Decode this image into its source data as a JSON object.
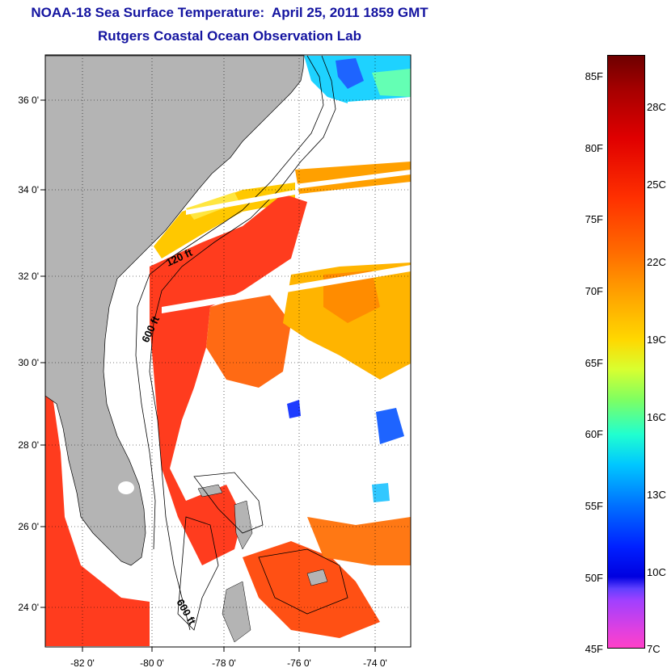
{
  "title": {
    "line1": "NOAA-18 Sea Surface Temperature:  April 25, 2011 1859 GMT",
    "line2": "Rutgers Coastal Ocean Observation Lab"
  },
  "map": {
    "latitude_labels": [
      "36 0'",
      "34 0'",
      "32 0'",
      "30 0'",
      "28 0'",
      "26 0'",
      "24 0'"
    ],
    "longitude_labels": [
      "-82 0'",
      "-80 0'",
      "-78 0'",
      "-76 0'",
      "-74 0'"
    ],
    "contour_labels": {
      "c120_top": "120 ft",
      "c600_mid": "600 ft",
      "c600_bottom": "600 ft"
    },
    "colors": {
      "land": "#b4b4b4",
      "ocean_no_data": "#ffffff",
      "warm_sst": "#ff3c1e",
      "mid_sst": "#ffb400",
      "cool_sst": "#1ed2ff"
    }
  },
  "colorbar": {
    "fahrenheit_labels": [
      "85F",
      "80F",
      "75F",
      "70F",
      "65F",
      "60F",
      "55F",
      "50F",
      "45F"
    ],
    "celsius_labels": [
      "28C",
      "25C",
      "22C",
      "19C",
      "16C",
      "13C",
      "10C",
      "7C"
    ],
    "range_f": [
      45,
      86
    ],
    "colors": {
      "max": "#6e0000",
      "mid": "#ffd800",
      "low": "#0000e0",
      "min": "#ff40c8"
    }
  }
}
